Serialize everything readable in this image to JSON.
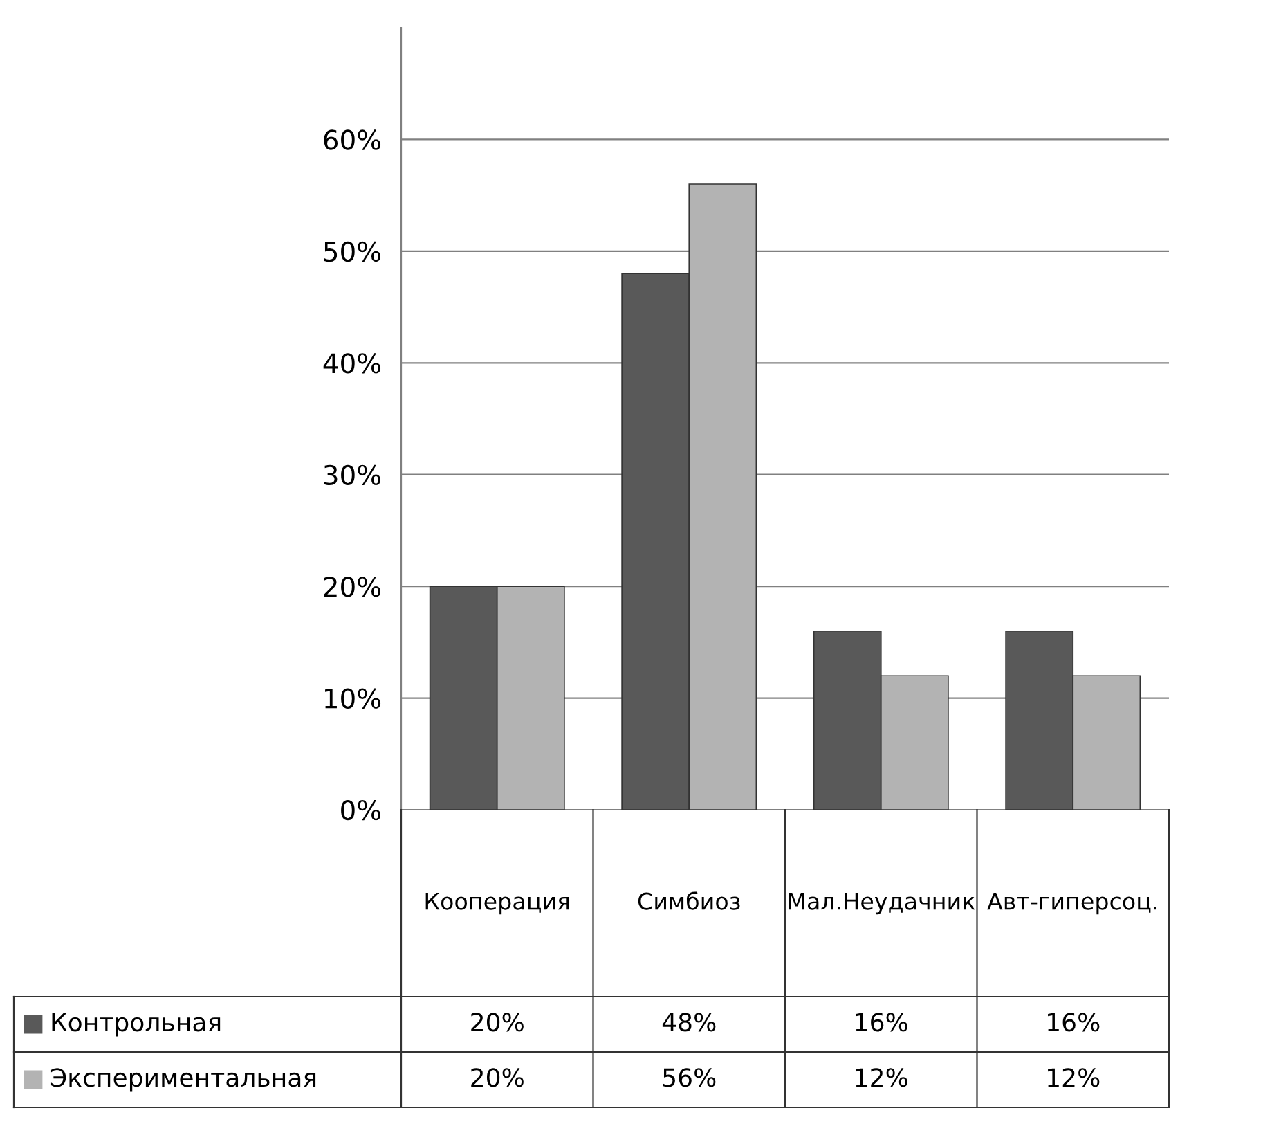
{
  "chart_data": {
    "type": "bar",
    "categories": [
      "Кооперация",
      "Симбиоз",
      "Мал.Неудачник",
      "Авт-гиперсоц."
    ],
    "series": [
      {
        "name": "Контрольная",
        "color": "#595959",
        "values": [
          20,
          48,
          16,
          16
        ],
        "value_labels": [
          "20%",
          "48%",
          "16%",
          "16%"
        ]
      },
      {
        "name": "Экспериментальная",
        "color": "#b3b3b3",
        "values": [
          20,
          56,
          12,
          12
        ],
        "value_labels": [
          "20%",
          "56%",
          "12%",
          "12%"
        ]
      }
    ],
    "ylim": [
      0,
      70
    ],
    "yticks": [
      {
        "value": 0,
        "label": "0%"
      },
      {
        "value": 10,
        "label": "10%"
      },
      {
        "value": 20,
        "label": "20%"
      },
      {
        "value": 30,
        "label": "30%"
      },
      {
        "value": 40,
        "label": "40%"
      },
      {
        "value": 50,
        "label": "50%"
      },
      {
        "value": 60,
        "label": "60%"
      },
      {
        "value": 70,
        "label": null
      }
    ],
    "grid": "y",
    "legend": "bottom"
  }
}
